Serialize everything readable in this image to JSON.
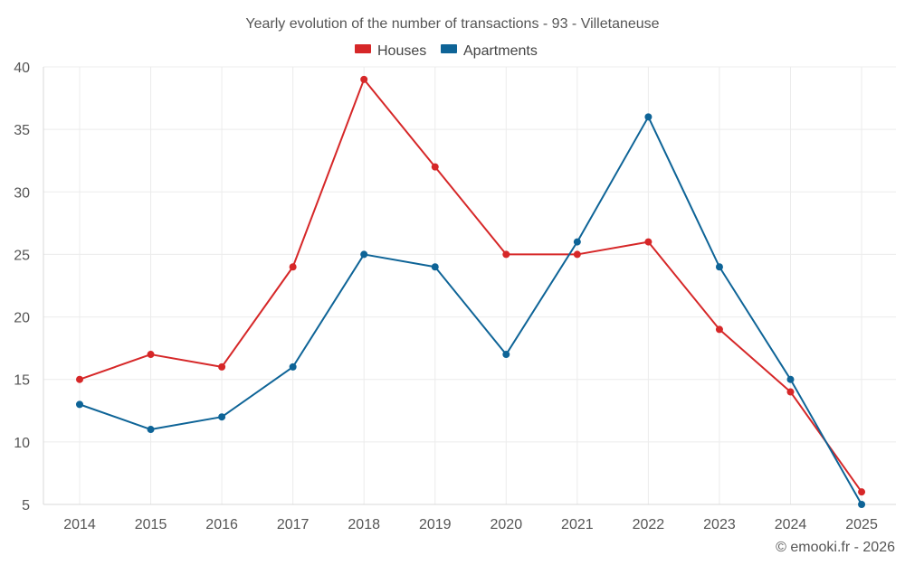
{
  "chart_data": {
    "type": "line",
    "title": "Yearly evolution of the number of transactions - 93 - Villetaneuse",
    "categories": [
      "2014",
      "2015",
      "2016",
      "2017",
      "2018",
      "2019",
      "2020",
      "2021",
      "2022",
      "2023",
      "2024",
      "2025"
    ],
    "series": [
      {
        "name": "Houses",
        "color": "#d62728",
        "values": [
          15,
          17,
          16,
          24,
          39,
          32,
          25,
          25,
          26,
          19,
          14,
          6
        ]
      },
      {
        "name": "Apartments",
        "color": "#0e6497",
        "values": [
          13,
          11,
          12,
          16,
          25,
          24,
          17,
          26,
          36,
          24,
          15,
          5
        ]
      }
    ],
    "ylim": [
      5,
      40
    ],
    "yticks": [
      "5",
      "10",
      "15",
      "20",
      "25",
      "30",
      "35",
      "40"
    ],
    "grid": true,
    "legend_position": "top-center",
    "xlabel": "",
    "ylabel": ""
  },
  "credit": "© emooki.fr - 2026"
}
